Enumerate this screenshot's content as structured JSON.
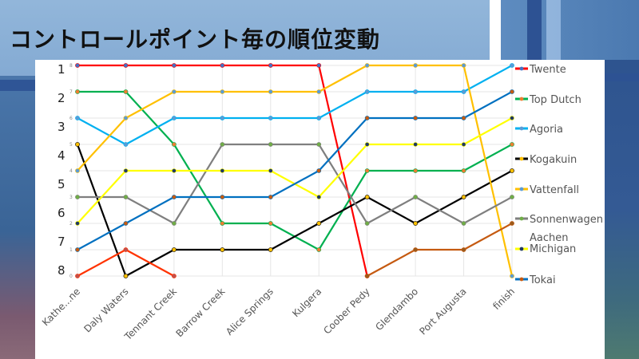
{
  "slide": {
    "title": "コントロールポイント毎の順位変動"
  },
  "chart_data": {
    "type": "line",
    "title": "コントロールポイント毎の順位変動",
    "xlabel": "",
    "ylabel": "",
    "categories": [
      "Kathe...ne",
      "Daly Waters",
      "Tennant Creek",
      "Barrow Creek",
      "Alice Springs",
      "Kulgera",
      "Coober Pedy",
      "Glendambo",
      "Port Augusta",
      "finish"
    ],
    "ylim": [
      0,
      8
    ],
    "y_ticks": [
      0,
      1,
      2,
      3,
      4,
      5,
      6,
      7,
      8
    ],
    "rank_labels": [
      "1",
      "2",
      "3",
      "4",
      "5",
      "6",
      "7",
      "8"
    ],
    "grid": true,
    "legend_position": "right",
    "series": [
      {
        "name": "Twente",
        "color": "#ff0000",
        "marker": "#4472c4",
        "values": [
          8,
          8,
          8,
          8,
          8,
          8,
          0,
          null,
          null,
          null
        ]
      },
      {
        "name": "Top Dutch",
        "color": "#00b050",
        "marker": "#ed7d31",
        "values": [
          7,
          7,
          5,
          2,
          2,
          1,
          4,
          4,
          4,
          5
        ]
      },
      {
        "name": "Agoria",
        "color": "#00b0f0",
        "marker": "#5b9bd5",
        "values": [
          6,
          5,
          6,
          6,
          6,
          6,
          7,
          7,
          7,
          8
        ]
      },
      {
        "name": "Kogakuin",
        "color": "#000000",
        "marker": "#ffc000",
        "values": [
          5,
          0,
          1,
          1,
          1,
          2,
          3,
          2,
          3,
          4
        ]
      },
      {
        "name": "Vattenfall",
        "color": "#ffc000",
        "marker": "#5b9bd5",
        "values": [
          4,
          6,
          7,
          7,
          7,
          7,
          8,
          8,
          8,
          0
        ]
      },
      {
        "name": "Sonnenwagen",
        "color": "#7f7f7f",
        "marker": "#70ad47",
        "values": [
          3,
          3,
          2,
          5,
          5,
          5,
          2,
          3,
          2,
          3
        ]
      },
      {
        "name": "Aachen Michigan",
        "color": "#ffff00",
        "marker": "#203864",
        "values": [
          2,
          4,
          4,
          4,
          4,
          3,
          5,
          5,
          5,
          6
        ]
      },
      {
        "name": "Tokai",
        "color": "#0070c0",
        "marker": "#c55a11",
        "values": [
          1,
          2,
          3,
          3,
          3,
          4,
          6,
          6,
          6,
          7
        ]
      },
      {
        "name": "",
        "color": "#ff3300",
        "marker": "#c0504d",
        "values": [
          0,
          1,
          0,
          null,
          null,
          null,
          null,
          null,
          null,
          null
        ]
      },
      {
        "name": "",
        "color": "#c55a11",
        "marker": "#9c5a1a",
        "values": [
          null,
          null,
          null,
          null,
          null,
          null,
          0,
          1,
          1,
          2
        ]
      }
    ]
  },
  "legend": {
    "items": [
      {
        "label": "Twente",
        "color": "#ff0000",
        "marker": "#4472c4"
      },
      {
        "label": "Top Dutch",
        "color": "#00b050",
        "marker": "#ed7d31"
      },
      {
        "label": "Agoria",
        "color": "#00b0f0",
        "marker": "#5b9bd5"
      },
      {
        "label": "Kogakuin",
        "color": "#000000",
        "marker": "#ffc000"
      },
      {
        "label": "Vattenfall",
        "color": "#ffc000",
        "marker": "#5b9bd5"
      },
      {
        "label": "Sonnenwagen",
        "color": "#7f7f7f",
        "marker": "#70ad47"
      },
      {
        "label": "Aachen Michigan",
        "label_line1": "Aachen",
        "label_line2": "Michigan",
        "color": "#ffff00",
        "marker": "#203864"
      },
      {
        "label": "Tokai",
        "color": "#0070c0",
        "marker": "#c55a11"
      }
    ]
  }
}
